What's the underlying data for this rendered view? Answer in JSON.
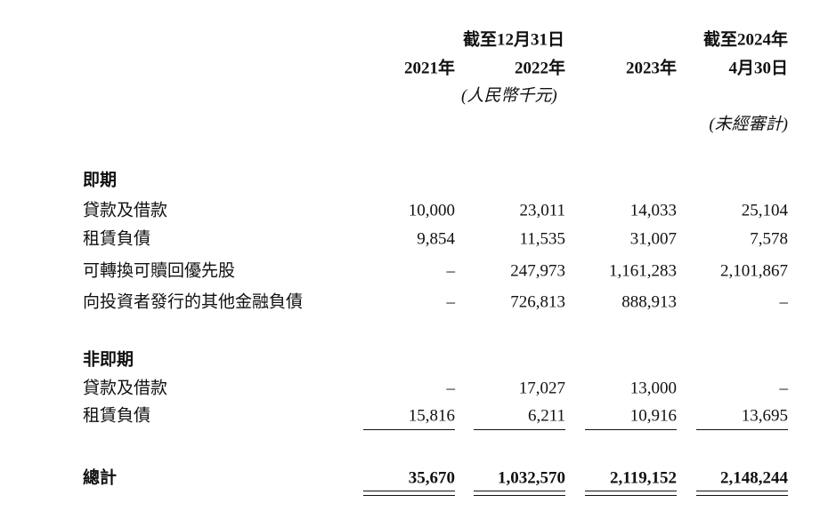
{
  "header": {
    "group_dec": "截至12月31日",
    "group_apr_line1": "截至2024年",
    "columns": [
      "2021年",
      "2022年",
      "2023年",
      "4月30日"
    ],
    "currency_note": "(人民幣千元)",
    "audit_note": "(未經審計)"
  },
  "sections": [
    {
      "title": "即期",
      "rows": [
        {
          "label": "貸款及借款",
          "values": [
            "10,000",
            "23,011",
            "14,033",
            "25,104"
          ]
        },
        {
          "label": "租賃負債",
          "values": [
            "9,854",
            "11,535",
            "31,007",
            "7,578"
          ]
        },
        {
          "label": "可轉換可贖回優先股",
          "values": [
            "–",
            "247,973",
            "1,161,283",
            "2,101,867"
          ]
        },
        {
          "label": "向投資者發行的其他金融負債",
          "values": [
            "–",
            "726,813",
            "888,913",
            "–"
          ]
        }
      ]
    },
    {
      "title": "非即期",
      "rows": [
        {
          "label": "貸款及借款",
          "values": [
            "–",
            "17,027",
            "13,000",
            "–"
          ]
        },
        {
          "label": "租賃負債",
          "values": [
            "15,816",
            "6,211",
            "10,916",
            "13,695"
          ]
        }
      ]
    }
  ],
  "total": {
    "label": "總計",
    "values": [
      "35,670",
      "1,032,570",
      "2,119,152",
      "2,148,244"
    ]
  }
}
